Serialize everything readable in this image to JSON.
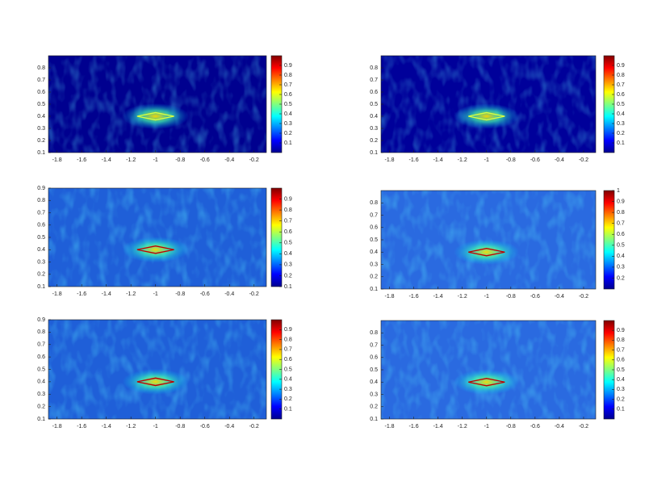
{
  "chart_data": [
    {
      "type": "heatmap",
      "field_color": "#00008f",
      "outline_color": "#d8ff40",
      "outline": {
        "x": [
          -1.15,
          -1.0,
          -0.85,
          -1.0,
          -1.15
        ],
        "y": [
          0.4,
          0.43,
          0.4,
          0.37,
          0.4
        ]
      },
      "xlim": [
        -1.87,
        -0.1
      ],
      "ylim": [
        0.1,
        0.9
      ],
      "xticks": [
        -1.8,
        -1.6,
        -1.4,
        -1.2,
        -1,
        -0.8,
        -0.6,
        -0.4,
        -0.2
      ],
      "yticks": [
        0.1,
        0.2,
        0.3,
        0.4,
        0.5,
        0.6,
        0.7,
        0.8
      ],
      "clim": [
        0,
        1
      ],
      "cticks": [
        0.1,
        0.2,
        0.3,
        0.4,
        0.5,
        0.6,
        0.7,
        0.8,
        0.9
      ]
    },
    {
      "type": "heatmap",
      "field_color": "#00009a",
      "outline_color": "#d8ff40",
      "outline": {
        "x": [
          -1.15,
          -1.0,
          -0.85,
          -1.0,
          -1.15
        ],
        "y": [
          0.4,
          0.43,
          0.4,
          0.37,
          0.4
        ]
      },
      "xlim": [
        -1.87,
        -0.1
      ],
      "ylim": [
        0.1,
        0.9
      ],
      "xticks": [
        -1.8,
        -1.6,
        -1.4,
        -1.2,
        -1,
        -0.8,
        -0.6,
        -0.4,
        -0.2
      ],
      "yticks": [
        0.1,
        0.2,
        0.3,
        0.4,
        0.5,
        0.6,
        0.7,
        0.8
      ],
      "clim": [
        0,
        1
      ],
      "cticks": [
        0.1,
        0.2,
        0.3,
        0.4,
        0.5,
        0.6,
        0.7,
        0.8,
        0.9
      ]
    },
    {
      "type": "heatmap",
      "field_color": "#1f5fd8",
      "outline_color": "#c00000",
      "outline": {
        "x": [
          -1.15,
          -1.0,
          -0.85,
          -1.0,
          -1.15
        ],
        "y": [
          0.4,
          0.43,
          0.4,
          0.37,
          0.4
        ]
      },
      "xlim": [
        -1.87,
        -0.1
      ],
      "ylim": [
        0.1,
        0.9
      ],
      "xticks": [
        -1.8,
        -1.6,
        -1.4,
        -1.2,
        -1,
        -0.8,
        -0.6,
        -0.4,
        -0.2
      ],
      "yticks": [
        0.1,
        0.2,
        0.3,
        0.4,
        0.5,
        0.6,
        0.7,
        0.8,
        0.9
      ],
      "clim": [
        0.1,
        1
      ],
      "cticks": [
        0.1,
        0.2,
        0.3,
        0.4,
        0.5,
        0.6,
        0.7,
        0.8,
        0.9
      ]
    },
    {
      "type": "heatmap",
      "field_color": "#2a6ae0",
      "outline_color": "#c00000",
      "outline": {
        "x": [
          -1.15,
          -1.0,
          -0.85,
          -1.0,
          -1.15
        ],
        "y": [
          0.4,
          0.43,
          0.4,
          0.37,
          0.4
        ]
      },
      "xlim": [
        -1.87,
        -0.1
      ],
      "ylim": [
        0.1,
        0.9
      ],
      "xticks": [
        -1.8,
        -1.6,
        -1.4,
        -1.2,
        -1,
        -0.8,
        -0.6,
        -0.4,
        -0.2
      ],
      "yticks": [
        0.1,
        0.2,
        0.3,
        0.4,
        0.5,
        0.6,
        0.7,
        0.8
      ],
      "clim": [
        0.1,
        1
      ],
      "cticks": [
        0.2,
        0.3,
        0.4,
        0.5,
        0.6,
        0.7,
        0.8,
        0.9,
        1
      ]
    },
    {
      "type": "heatmap",
      "field_color": "#1f5fd8",
      "outline_color": "#c00000",
      "outline": {
        "x": [
          -1.15,
          -1.0,
          -0.85,
          -1.0,
          -1.15
        ],
        "y": [
          0.4,
          0.43,
          0.4,
          0.37,
          0.4
        ]
      },
      "xlim": [
        -1.87,
        -0.1
      ],
      "ylim": [
        0.1,
        0.9
      ],
      "xticks": [
        -1.8,
        -1.6,
        -1.4,
        -1.2,
        -1,
        -0.8,
        -0.6,
        -0.4,
        -0.2
      ],
      "yticks": [
        0.1,
        0.2,
        0.3,
        0.4,
        0.5,
        0.6,
        0.7,
        0.8,
        0.9
      ],
      "clim": [
        0,
        1
      ],
      "cticks": [
        0.1,
        0.2,
        0.3,
        0.4,
        0.5,
        0.6,
        0.7,
        0.8,
        0.9
      ]
    },
    {
      "type": "heatmap",
      "field_color": "#2a6ae0",
      "outline_color": "#c00000",
      "outline": {
        "x": [
          -1.15,
          -1.0,
          -0.85,
          -1.0,
          -1.15
        ],
        "y": [
          0.4,
          0.43,
          0.4,
          0.37,
          0.4
        ]
      },
      "xlim": [
        -1.87,
        -0.1
      ],
      "ylim": [
        0.1,
        0.9
      ],
      "xticks": [
        -1.8,
        -1.6,
        -1.4,
        -1.2,
        -1,
        -0.8,
        -0.6,
        -0.4,
        -0.2
      ],
      "yticks": [
        0.1,
        0.2,
        0.3,
        0.4,
        0.5,
        0.6,
        0.7,
        0.8
      ],
      "clim": [
        0,
        1
      ],
      "cticks": [
        0.1,
        0.2,
        0.3,
        0.4,
        0.5,
        0.6,
        0.7,
        0.8,
        0.9
      ]
    }
  ]
}
